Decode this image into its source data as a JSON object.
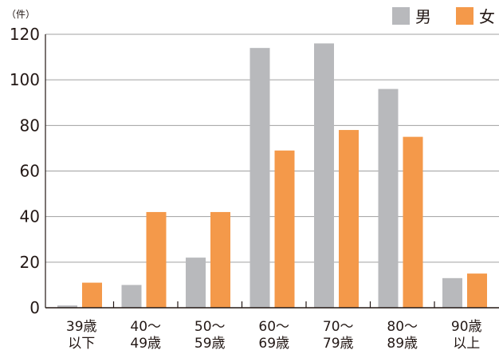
{
  "chart_data": {
    "type": "bar",
    "title": "",
    "unit_label": "（件）",
    "categories": [
      [
        "39歳",
        "以下"
      ],
      [
        "40～",
        "49歳"
      ],
      [
        "50～",
        "59歳"
      ],
      [
        "60～",
        "69歳"
      ],
      [
        "70～",
        "79歳"
      ],
      [
        "80～",
        "89歳"
      ],
      [
        "90歳",
        "以上"
      ]
    ],
    "series": [
      {
        "name": "男",
        "color": "#b8b9bc",
        "values": [
          1,
          10,
          22,
          114,
          116,
          96,
          13
        ]
      },
      {
        "name": "女",
        "color": "#f4994a",
        "values": [
          11,
          42,
          42,
          69,
          78,
          75,
          15
        ]
      }
    ],
    "ylim": [
      0,
      120
    ],
    "yticks": [
      0,
      20,
      40,
      60,
      80,
      100,
      120
    ],
    "grid": true,
    "legend_position": "top-right",
    "xlabel": "",
    "ylabel": ""
  }
}
